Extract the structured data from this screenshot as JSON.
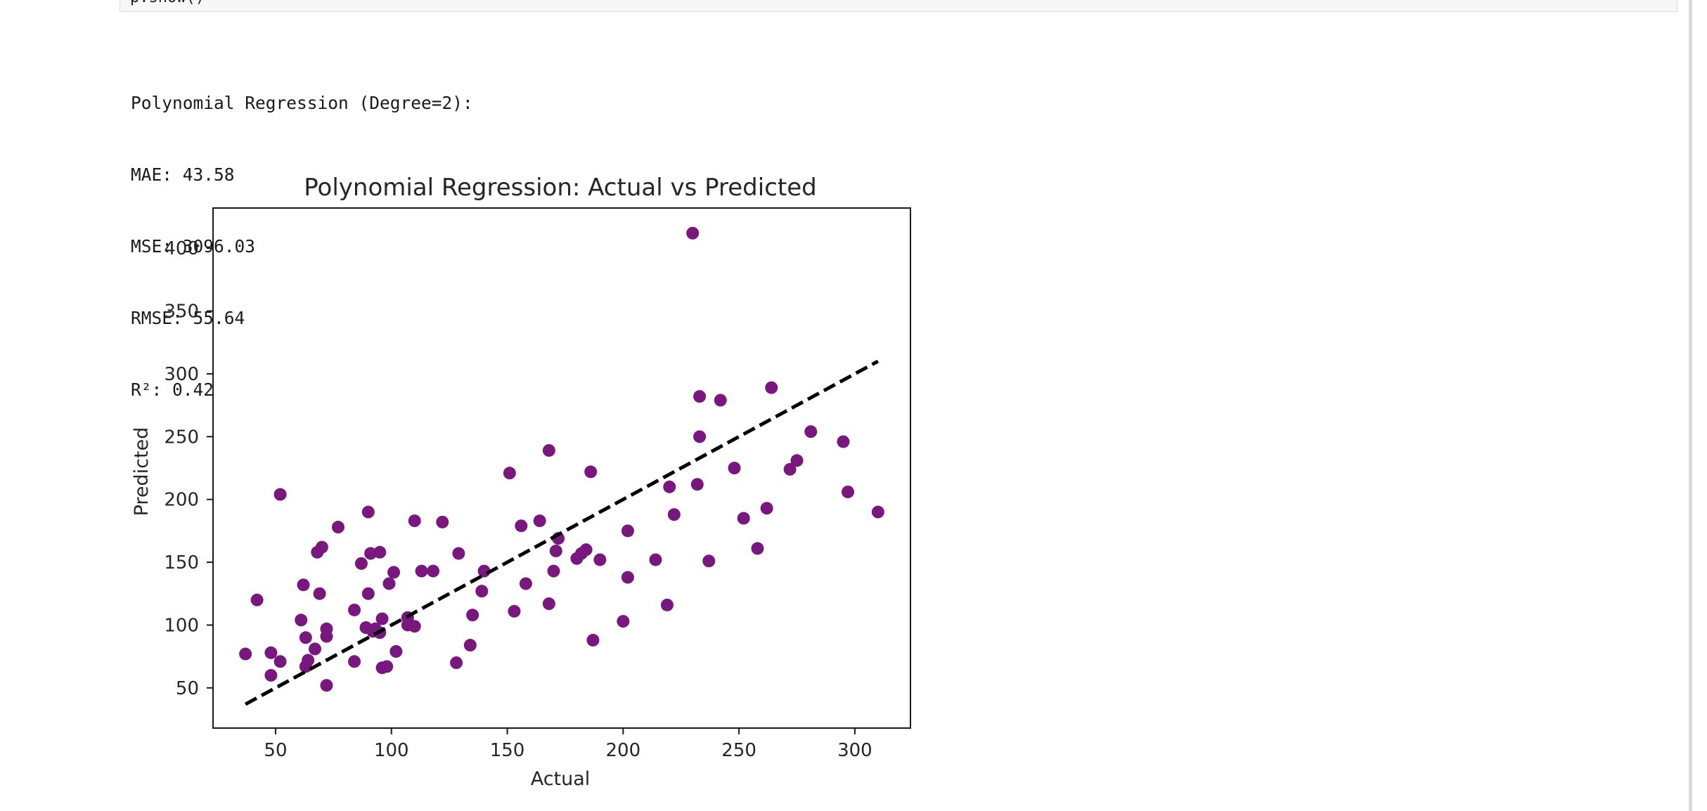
{
  "cell": {
    "input_fragment": "p.show()"
  },
  "output": {
    "lines": [
      "Polynomial Regression (Degree=2):",
      "MAE: 43.58",
      "MSE: 3096.03",
      "RMSE: 55.64",
      "R²: 0.42"
    ]
  },
  "colors": {
    "points": "#7a177f",
    "reference_line": "#000000",
    "axes": "#1a1a1a"
  },
  "chart_data": {
    "type": "scatter",
    "title": "Polynomial Regression: Actual vs Predicted",
    "xlabel": "Actual",
    "ylabel": "Predicted",
    "xlim": [
      23,
      324
    ],
    "ylim": [
      18,
      432
    ],
    "xticks": [
      50,
      100,
      150,
      200,
      250,
      300
    ],
    "yticks": [
      50,
      100,
      150,
      200,
      250,
      300,
      350,
      400
    ],
    "grid": false,
    "legend": "none",
    "reference_line": {
      "style": "dashed",
      "x": [
        37,
        310
      ],
      "y": [
        37,
        310
      ]
    },
    "points": [
      [
        37,
        77
      ],
      [
        42,
        120
      ],
      [
        48,
        78
      ],
      [
        48,
        60
      ],
      [
        52,
        71
      ],
      [
        52,
        204
      ],
      [
        61,
        104
      ],
      [
        62,
        132
      ],
      [
        63,
        67
      ],
      [
        63,
        90
      ],
      [
        64,
        72
      ],
      [
        67,
        81
      ],
      [
        68,
        158
      ],
      [
        69,
        125
      ],
      [
        70,
        162
      ],
      [
        72,
        97
      ],
      [
        72,
        91
      ],
      [
        72,
        52
      ],
      [
        77,
        178
      ],
      [
        84,
        71
      ],
      [
        84,
        112
      ],
      [
        87,
        149
      ],
      [
        89,
        98
      ],
      [
        90,
        125
      ],
      [
        90,
        190
      ],
      [
        91,
        157
      ],
      [
        92,
        95
      ],
      [
        93,
        97
      ],
      [
        95,
        94
      ],
      [
        95,
        158
      ],
      [
        96,
        105
      ],
      [
        96,
        66
      ],
      [
        98,
        67
      ],
      [
        99,
        133
      ],
      [
        101,
        142
      ],
      [
        102,
        79
      ],
      [
        107,
        100
      ],
      [
        107,
        106
      ],
      [
        110,
        99
      ],
      [
        110,
        183
      ],
      [
        113,
        143
      ],
      [
        118,
        143
      ],
      [
        122,
        182
      ],
      [
        128,
        70
      ],
      [
        129,
        157
      ],
      [
        134,
        84
      ],
      [
        135,
        108
      ],
      [
        139,
        127
      ],
      [
        140,
        143
      ],
      [
        151,
        221
      ],
      [
        153,
        111
      ],
      [
        156,
        179
      ],
      [
        158,
        133
      ],
      [
        164,
        183
      ],
      [
        168,
        117
      ],
      [
        168,
        239
      ],
      [
        170,
        143
      ],
      [
        171,
        159
      ],
      [
        172,
        169
      ],
      [
        180,
        153
      ],
      [
        182,
        157
      ],
      [
        184,
        160
      ],
      [
        186,
        222
      ],
      [
        187,
        88
      ],
      [
        190,
        152
      ],
      [
        200,
        103
      ],
      [
        202,
        175
      ],
      [
        202,
        138
      ],
      [
        214,
        152
      ],
      [
        219,
        116
      ],
      [
        220,
        210
      ],
      [
        222,
        188
      ],
      [
        230,
        412
      ],
      [
        232,
        212
      ],
      [
        233,
        282
      ],
      [
        233,
        250
      ],
      [
        237,
        151
      ],
      [
        242,
        279
      ],
      [
        248,
        225
      ],
      [
        252,
        185
      ],
      [
        258,
        161
      ],
      [
        262,
        193
      ],
      [
        264,
        289
      ],
      [
        272,
        224
      ],
      [
        275,
        231
      ],
      [
        281,
        254
      ],
      [
        295,
        246
      ],
      [
        297,
        206
      ],
      [
        310,
        190
      ]
    ]
  }
}
